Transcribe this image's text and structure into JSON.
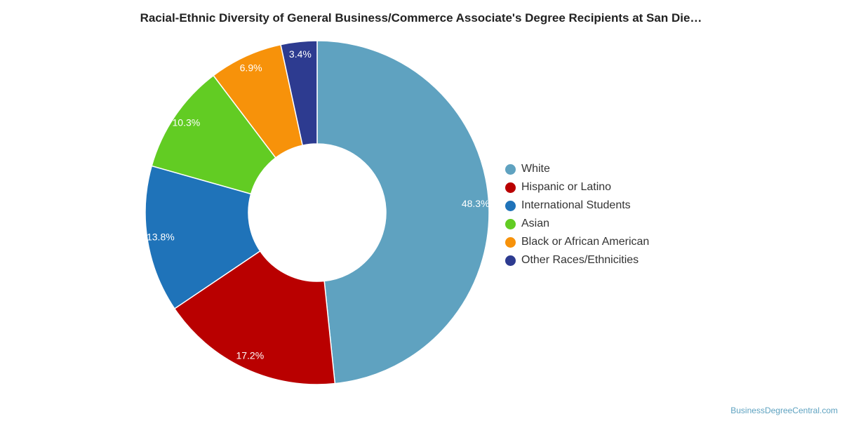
{
  "chart_data": {
    "type": "pie",
    "title": "Racial-Ethnic Diversity of General Business/Commerce Associate's Degree Recipients at San Die…",
    "categories": [
      "White",
      "Hispanic or Latino",
      "International Students",
      "Asian",
      "Black or African American",
      "Other Races/Ethnicities"
    ],
    "values": [
      48.3,
      17.2,
      13.8,
      10.3,
      6.9,
      3.4
    ],
    "labels": [
      "48.3%",
      "17.2%",
      "13.8%",
      "10.3%",
      "6.9%",
      "3.4%"
    ],
    "colors": [
      "#5fa2c0",
      "#b90000",
      "#1f73b9",
      "#62cc23",
      "#f7920a",
      "#2d3b90"
    ],
    "donut": true,
    "legend_position": "right"
  },
  "source": "BusinessDegreeCentral.com"
}
